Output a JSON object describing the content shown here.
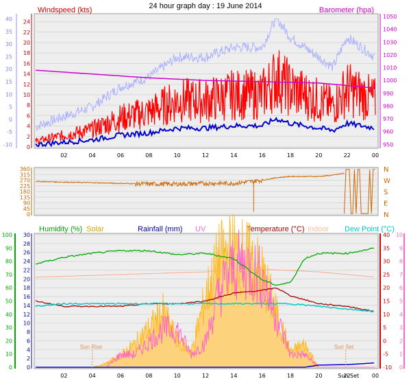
{
  "title": "24 hour graph day : 19 June 2014",
  "x_ticks": [
    "02",
    "04",
    "06",
    "08",
    "10",
    "12",
    "14",
    "16",
    "18",
    "20",
    "22",
    "00"
  ],
  "panel1": {
    "left_title": "Windspeed (kts)",
    "right_title": "Barometer (hpa)",
    "colors": {
      "windspeed": "#ff0000",
      "barometer": "#cc00cc",
      "gust": "#aab0ff",
      "avg": "#0000cc",
      "axis_wind": "#cc0000",
      "axis_baro": "#cc00cc",
      "axis_outer": "#9090ff"
    }
  },
  "panel2": {
    "compass_labels": [
      "N",
      "W",
      "S",
      "E",
      "N"
    ],
    "colors": {
      "direction": "#cc6600"
    }
  },
  "panel3": {
    "labels": {
      "humidity": "Humidity",
      "humidity_unit": "(%)",
      "solar": "Solar",
      "rainfall": "Rainfall (mm)",
      "uv": "UV",
      "temperature": "Temperature (°C)",
      "indoor": "Indoor",
      "dewpoint": "Dew Point (°C)"
    },
    "annotations": {
      "sunrise": "Sun Rise",
      "sunset": "Sun Set",
      "sunset_time": "Sun Set"
    },
    "colors": {
      "humidity": "#00aa00",
      "solar": "#ffb000",
      "rain": "#0000cc",
      "uv": "#ff66cc",
      "temperature": "#aa0000",
      "indoor": "#ffaa88",
      "dewpoint": "#00cccc"
    }
  },
  "chart_data": [
    {
      "type": "line",
      "title": "24 hour graph day : 19 June 2014",
      "x_ticks": [
        "02",
        "04",
        "06",
        "08",
        "10",
        "12",
        "14",
        "16",
        "18",
        "20",
        "22",
        "00"
      ],
      "y_left_label": "Windspeed (kts)",
      "y_left_ticks": [
        0,
        2,
        4,
        6,
        8,
        10,
        12,
        14,
        16,
        18,
        20,
        22,
        24
      ],
      "y_outer_left_ticks": [
        -10,
        -5,
        0,
        5,
        10,
        15,
        20,
        25,
        30,
        35,
        40
      ],
      "y_right_label": "Barometer (hpa)",
      "y_right_ticks": [
        950,
        960,
        970,
        980,
        990,
        1000,
        1010,
        1020,
        1030,
        1040,
        1050
      ],
      "series": [
        {
          "name": "Windspeed (kts)",
          "x": [
            0,
            2,
            4,
            6,
            8,
            10,
            12,
            14,
            16,
            17,
            18,
            19,
            20,
            21,
            22,
            23,
            24
          ],
          "values": [
            1,
            2,
            3,
            5,
            6,
            8,
            8,
            9,
            9,
            12,
            10,
            9,
            8,
            7,
            10,
            9,
            8
          ]
        },
        {
          "name": "Barometer (hpa)",
          "x": [
            0,
            4,
            8,
            12,
            16,
            20,
            24
          ],
          "values": [
            1008,
            1005,
            1002,
            1000,
            999,
            998,
            994
          ]
        }
      ]
    },
    {
      "type": "line",
      "y_ticks": [
        0,
        45,
        90,
        135,
        180,
        225,
        270,
        315,
        360
      ],
      "y_right_labels": [
        "N",
        "W",
        "S",
        "E",
        "N"
      ],
      "series": [
        {
          "x": [
            0,
            2,
            4,
            6,
            8,
            10,
            12,
            14,
            16,
            17,
            18,
            20,
            21,
            22,
            23,
            24
          ],
          "values": [
            260,
            255,
            250,
            245,
            240,
            240,
            245,
            245,
            270,
            290,
            300,
            300,
            310,
            330,
            60,
            180
          ]
        }
      ]
    },
    {
      "type": "line",
      "x_ticks": [
        "02",
        "04",
        "06",
        "08",
        "10",
        "12",
        "14",
        "16",
        "18",
        "20",
        "22",
        "00"
      ],
      "y_left_ticks_humidity": [
        0,
        10,
        20,
        30,
        40,
        50,
        60,
        70,
        80,
        90,
        100
      ],
      "y_left_ticks_rain": [
        0,
        2,
        4,
        6,
        8,
        10,
        12,
        14,
        16,
        18,
        20,
        22,
        24,
        26,
        28,
        30
      ],
      "y_right_ticks_temperature": [
        -10,
        -5,
        0,
        5,
        10,
        15,
        20,
        25,
        30,
        35,
        40
      ],
      "y_right_ticks_uv": [
        0,
        1,
        2,
        3,
        4,
        5,
        6,
        7,
        8,
        9,
        10
      ],
      "series": [
        {
          "name": "Humidity (%)",
          "x": [
            0,
            2,
            4,
            6,
            8,
            10,
            12,
            14,
            16,
            17,
            18,
            19,
            20,
            22,
            24
          ],
          "values": [
            78,
            83,
            86,
            88,
            88,
            85,
            86,
            82,
            66,
            62,
            64,
            82,
            86,
            86,
            90
          ]
        },
        {
          "name": "Temperature (°C)",
          "x": [
            0,
            2,
            4,
            6,
            8,
            10,
            12,
            14,
            16,
            17,
            18,
            20,
            22,
            24
          ],
          "values": [
            15,
            13,
            13,
            13,
            14,
            14,
            15,
            18,
            19,
            20,
            17,
            14,
            13,
            11
          ]
        },
        {
          "name": "Dew Point (°C)",
          "x": [
            0,
            2,
            4,
            6,
            8,
            10,
            12,
            14,
            16,
            18,
            20,
            22,
            24
          ],
          "values": [
            13,
            14,
            14,
            14,
            14,
            14,
            14,
            14,
            14,
            14,
            13,
            12,
            11
          ]
        },
        {
          "name": "Indoor",
          "x": [
            0,
            6,
            12,
            16,
            20,
            24
          ],
          "values": [
            24,
            25,
            26,
            27,
            26,
            24
          ]
        },
        {
          "name": "Solar",
          "x": [
            0,
            4,
            5,
            6,
            7,
            8,
            9,
            10,
            11,
            12,
            13,
            14,
            15,
            16,
            17,
            18,
            19,
            20,
            24
          ],
          "values": [
            0,
            0,
            1,
            3,
            6,
            10,
            14,
            7,
            4,
            18,
            28,
            30,
            28,
            24,
            14,
            4,
            6,
            0,
            0
          ]
        },
        {
          "name": "UV",
          "x": [
            0,
            5,
            6,
            7,
            8,
            9,
            10,
            11,
            12,
            13,
            14,
            15,
            16,
            17,
            18,
            19,
            20,
            24
          ],
          "values": [
            0,
            0,
            1,
            1,
            2,
            3,
            3,
            1,
            2,
            6,
            8,
            8,
            7,
            4,
            1,
            1,
            0,
            0
          ]
        },
        {
          "name": "Rainfall (mm)",
          "x": [
            0,
            19,
            20,
            22,
            23,
            24
          ],
          "values": [
            0,
            0,
            0.5,
            0.6,
            0.8,
            1.0
          ]
        }
      ]
    }
  ]
}
